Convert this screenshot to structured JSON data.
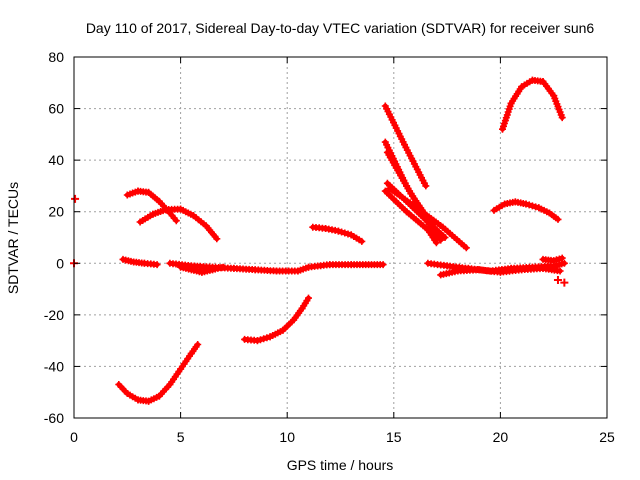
{
  "chart_data": {
    "type": "scatter",
    "title": "Day 110 of 2017, Sidereal Day-to-day VTEC variation (SDTVAR) for receiver sun6",
    "xlabel": "GPS time / hours",
    "ylabel": "SDTVAR / TECUs",
    "xlim": [
      0,
      25
    ],
    "ylim": [
      -60,
      80
    ],
    "xticks": [
      0,
      5,
      10,
      15,
      20,
      25
    ],
    "yticks": [
      -60,
      -40,
      -20,
      0,
      20,
      40,
      60,
      80
    ],
    "grid": true,
    "color": "#ff0000",
    "series": [
      {
        "name": "isolated-points",
        "points": [
          [
            0.05,
            25
          ],
          [
            0.0,
            0
          ]
        ]
      },
      {
        "name": "arc-low-1",
        "points": [
          [
            2.1,
            -47
          ],
          [
            2.5,
            -50.5
          ],
          [
            3.0,
            -53
          ],
          [
            3.5,
            -53.5
          ],
          [
            4.0,
            -51.5
          ],
          [
            4.5,
            -47
          ],
          [
            5.0,
            -41
          ],
          [
            5.5,
            -35
          ],
          [
            5.8,
            -31.5
          ]
        ]
      },
      {
        "name": "arc-low-2",
        "points": [
          [
            8.0,
            -29.5
          ],
          [
            8.6,
            -30
          ],
          [
            9.2,
            -28.5
          ],
          [
            9.8,
            -26
          ],
          [
            10.3,
            -22
          ],
          [
            10.7,
            -17.5
          ],
          [
            11.0,
            -13.5
          ]
        ]
      },
      {
        "name": "arc-upper-1",
        "points": [
          [
            2.5,
            26.5
          ],
          [
            3.0,
            28
          ],
          [
            3.5,
            27.5
          ],
          [
            4.0,
            24
          ],
          [
            4.5,
            19.5
          ],
          [
            4.8,
            16.5
          ]
        ]
      },
      {
        "name": "arc-upper-2",
        "points": [
          [
            3.1,
            16
          ],
          [
            3.7,
            19
          ],
          [
            4.3,
            20.8
          ],
          [
            5.0,
            21
          ],
          [
            5.6,
            18.5
          ],
          [
            6.2,
            14.5
          ],
          [
            6.7,
            9.5
          ]
        ]
      },
      {
        "name": "arc-upper-3",
        "points": [
          [
            11.2,
            14
          ],
          [
            11.8,
            13.5
          ],
          [
            12.4,
            12.5
          ],
          [
            13.0,
            11
          ],
          [
            13.5,
            8.5
          ]
        ]
      },
      {
        "name": "steep-1",
        "points": [
          [
            14.6,
            61
          ],
          [
            15.5,
            46
          ],
          [
            16.5,
            30
          ]
        ]
      },
      {
        "name": "steep-2",
        "points": [
          [
            14.6,
            47
          ],
          [
            15.6,
            30
          ],
          [
            16.6,
            16
          ],
          [
            17.0,
            10
          ]
        ]
      },
      {
        "name": "steep-3",
        "points": [
          [
            14.7,
            43
          ],
          [
            15.8,
            27
          ],
          [
            16.8,
            15
          ],
          [
            17.2,
            9
          ]
        ]
      },
      {
        "name": "steep-4",
        "points": [
          [
            14.7,
            31
          ],
          [
            15.6,
            24
          ],
          [
            16.6,
            16
          ],
          [
            17.4,
            10
          ]
        ]
      },
      {
        "name": "steep-5",
        "points": [
          [
            14.8,
            29
          ],
          [
            16.0,
            22
          ],
          [
            17.3,
            14
          ],
          [
            18.4,
            6
          ]
        ]
      },
      {
        "name": "steep-6",
        "points": [
          [
            14.6,
            28
          ],
          [
            15.6,
            20
          ],
          [
            16.6,
            13
          ],
          [
            17.0,
            8
          ]
        ]
      },
      {
        "name": "arc-upper-4",
        "points": [
          [
            19.7,
            20.5
          ],
          [
            20.2,
            23
          ],
          [
            20.7,
            23.8
          ],
          [
            21.2,
            23
          ],
          [
            21.8,
            21.5
          ],
          [
            22.3,
            19.5
          ],
          [
            22.7,
            17
          ]
        ]
      },
      {
        "name": "arc-top",
        "points": [
          [
            20.1,
            52
          ],
          [
            20.5,
            62
          ],
          [
            21.0,
            68.5
          ],
          [
            21.5,
            71
          ],
          [
            22.0,
            70.5
          ],
          [
            22.5,
            65
          ],
          [
            22.9,
            56.5
          ]
        ]
      },
      {
        "name": "near-zero-1",
        "points": [
          [
            2.3,
            1.5
          ],
          [
            2.8,
            0.5
          ],
          [
            3.3,
            0
          ],
          [
            3.9,
            -0.5
          ]
        ]
      },
      {
        "name": "near-zero-2",
        "points": [
          [
            4.5,
            0
          ],
          [
            5.5,
            -1
          ],
          [
            6.5,
            -1.5
          ],
          [
            7.5,
            -2
          ],
          [
            8.5,
            -2.5
          ],
          [
            9.5,
            -3
          ],
          [
            10.5,
            -3
          ],
          [
            11.0,
            -1.5
          ],
          [
            12.0,
            -0.5
          ],
          [
            13.0,
            -0.5
          ],
          [
            14.5,
            -0.5
          ]
        ]
      },
      {
        "name": "near-zero-3",
        "points": [
          [
            5.0,
            -1.5
          ],
          [
            5.5,
            -2.5
          ],
          [
            6.0,
            -3.5
          ],
          [
            6.5,
            -2.5
          ],
          [
            7.0,
            -1.5
          ]
        ]
      },
      {
        "name": "near-zero-4",
        "points": [
          [
            16.6,
            0
          ],
          [
            17.5,
            -1
          ],
          [
            18.5,
            -2
          ],
          [
            19.5,
            -3
          ],
          [
            20.5,
            -2
          ],
          [
            21.5,
            -1.5
          ],
          [
            22.5,
            -1
          ],
          [
            23.0,
            0
          ]
        ]
      },
      {
        "name": "near-zero-5",
        "points": [
          [
            17.2,
            -4.5
          ],
          [
            18.0,
            -3
          ],
          [
            19.0,
            -2.5
          ],
          [
            20.0,
            -3.5
          ],
          [
            21.0,
            -2.5
          ],
          [
            22.0,
            -2
          ],
          [
            22.8,
            -3
          ]
        ]
      },
      {
        "name": "near-zero-6",
        "points": [
          [
            22.0,
            1.5
          ],
          [
            22.5,
            1
          ],
          [
            22.9,
            2
          ]
        ]
      },
      {
        "name": "tail-points",
        "points": [
          [
            22.7,
            -6.5
          ],
          [
            23.0,
            -7.5
          ]
        ]
      }
    ]
  }
}
